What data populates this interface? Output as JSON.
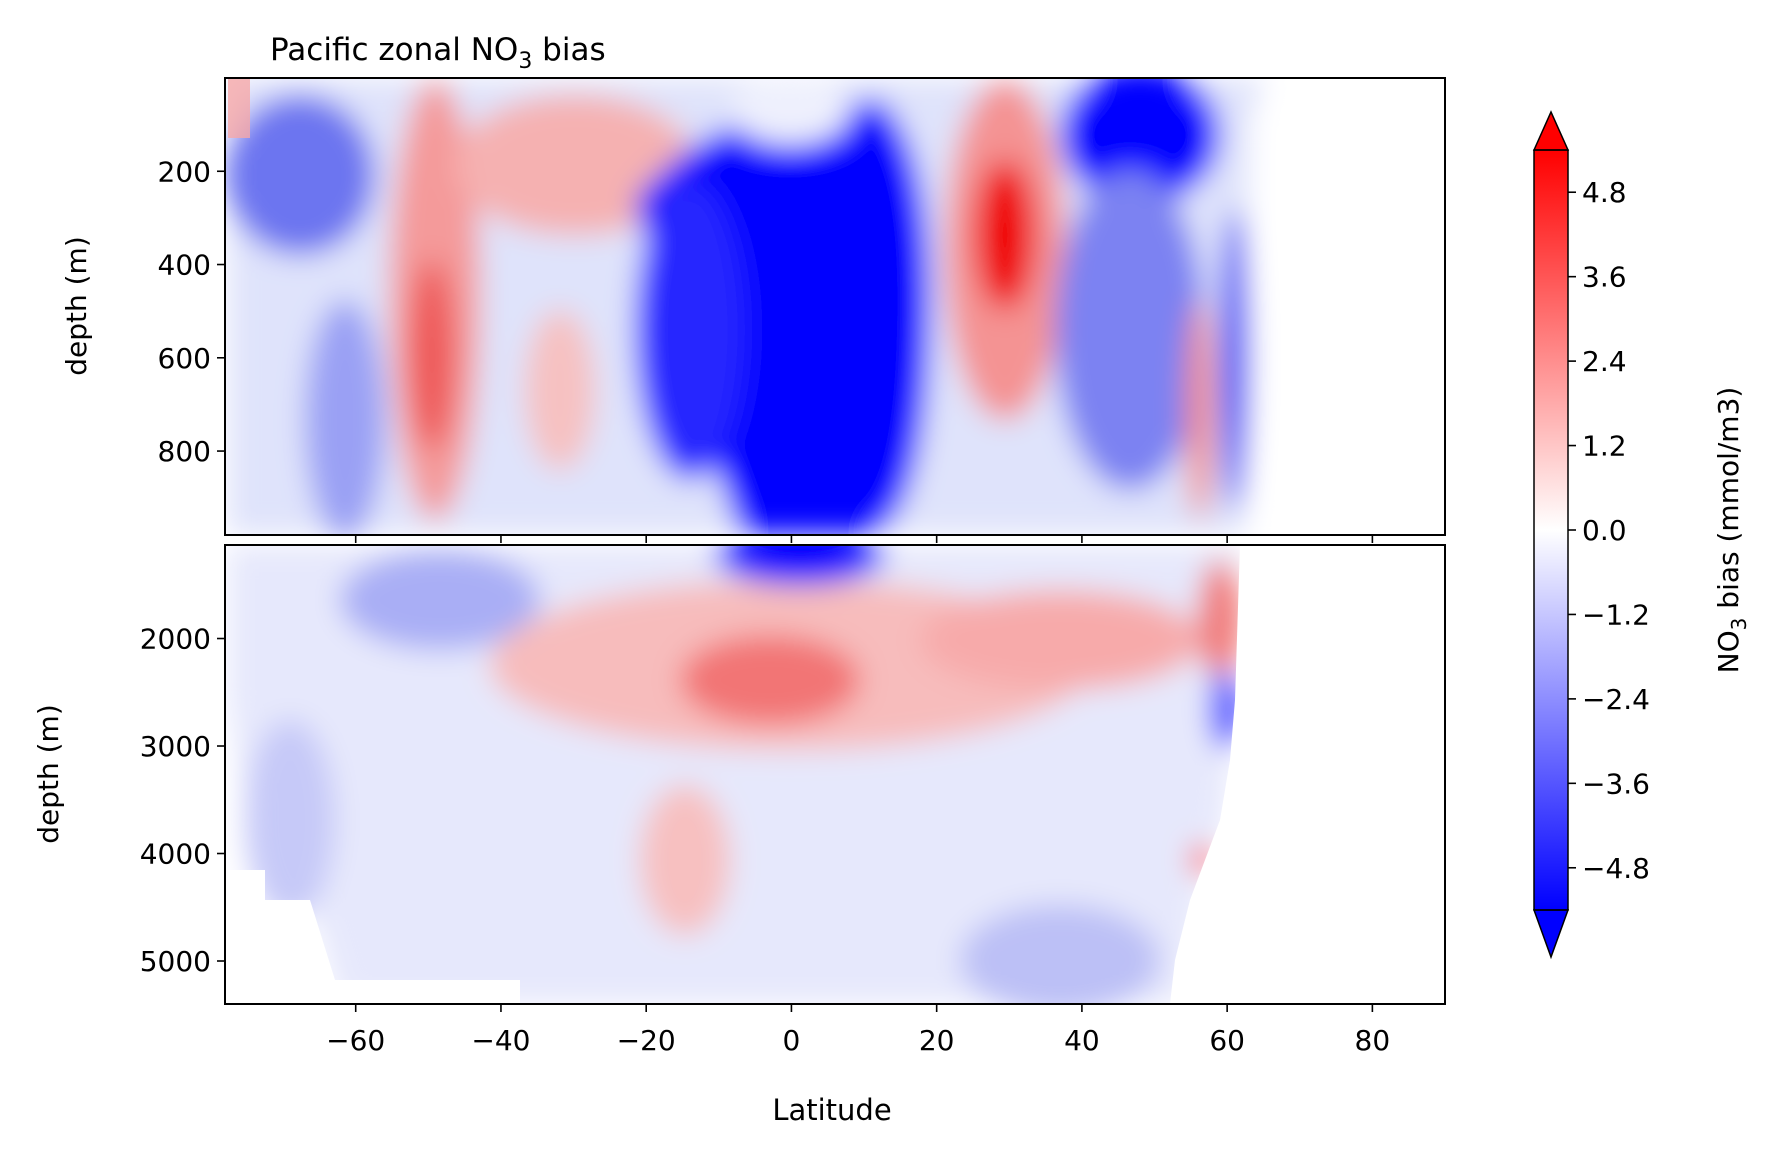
{
  "chart_data": {
    "type": "heatmap",
    "title": "Pacific zonal NO",
    "title_subscript": "3",
    "title_suffix": " bias",
    "xlabel": "Latitude",
    "x_ticks": [
      -60,
      -40,
      -20,
      0,
      20,
      40,
      60,
      80
    ],
    "x_tick_labels": [
      "−60",
      "−40",
      "−20",
      "0",
      "20",
      "40",
      "60",
      "80"
    ],
    "xlim": [
      -78,
      90
    ],
    "panels": [
      {
        "name": "upper",
        "ylabel": "depth (m)",
        "ylim": [
          0,
          980
        ],
        "y_ticks": [
          200,
          400,
          600,
          800
        ],
        "y_tick_labels": [
          "200",
          "400",
          "600",
          "800"
        ],
        "inverted": true
      },
      {
        "name": "lower",
        "ylabel": "depth (m)",
        "ylim": [
          1130,
          5400
        ],
        "y_ticks": [
          2000,
          3000,
          4000,
          5000
        ],
        "y_tick_labels": [
          "2000",
          "3000",
          "4000",
          "5000"
        ],
        "inverted": true
      }
    ],
    "colorbar": {
      "label": "NO",
      "label_subscript": "3",
      "label_suffix": " bias (mmol/m3)",
      "vmin": -5.4,
      "vmax": 5.4,
      "ticks": [
        -4.8,
        -3.6,
        -2.4,
        -1.2,
        0.0,
        1.2,
        2.4,
        3.6,
        4.8
      ],
      "tick_labels": [
        "−4.8",
        "−3.6",
        "−2.4",
        "−1.2",
        "0.0",
        "1.2",
        "2.4",
        "3.6",
        "4.8"
      ],
      "colormap": "bwr",
      "extend": "both"
    },
    "features": [
      {
        "panel": "upper",
        "lat": -48,
        "depth": 550,
        "value": 3.2
      },
      {
        "panel": "upper",
        "lat": -28,
        "depth": 180,
        "value": 1.6
      },
      {
        "panel": "upper",
        "lat": -35,
        "depth": 700,
        "value": 1.2
      },
      {
        "panel": "upper",
        "lat": -66,
        "depth": 180,
        "value": -2.0
      },
      {
        "panel": "upper",
        "lat": 5,
        "depth": 600,
        "value": -5.4
      },
      {
        "panel": "upper",
        "lat": 30,
        "depth": 350,
        "value": 4.8
      },
      {
        "panel": "upper",
        "lat": 48,
        "depth": 100,
        "value": -5.4
      },
      {
        "panel": "upper",
        "lat": 57,
        "depth": 650,
        "value": 2.0
      },
      {
        "panel": "lower",
        "lat": 0,
        "depth": 1300,
        "value": -5.4
      },
      {
        "panel": "lower",
        "lat": -2,
        "depth": 2300,
        "value": 2.4
      },
      {
        "panel": "lower",
        "lat": 20,
        "depth": 2000,
        "value": 1.8
      },
      {
        "panel": "lower",
        "lat": -15,
        "depth": 4200,
        "value": 1.4
      },
      {
        "panel": "lower",
        "lat": -55,
        "depth": 1500,
        "value": -1.6
      },
      {
        "panel": "lower",
        "lat": 30,
        "depth": 4800,
        "value": -1.5
      },
      {
        "panel": "lower",
        "lat": 60,
        "depth": 2800,
        "value": -5.0
      },
      {
        "panel": "lower",
        "lat": 57,
        "depth": 4000,
        "value": 5.0
      }
    ]
  }
}
